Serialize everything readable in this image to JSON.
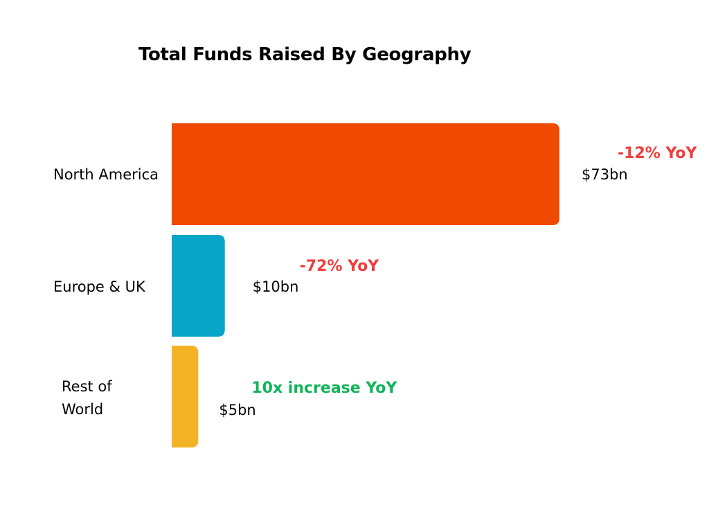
{
  "chart_data": {
    "type": "bar",
    "orientation": "horizontal",
    "title": "Total Funds Raised By Geography",
    "categories": [
      "North America",
      "Europe & UK",
      "Rest of World"
    ],
    "values": [
      73,
      10,
      5
    ],
    "value_labels": [
      "$73bn",
      "$10bn",
      "$5bn"
    ],
    "annotations": [
      "-12% YoY",
      "-72% YoY",
      "10x increase YoY"
    ],
    "unit": "$bn",
    "xlim": [
      0,
      73
    ],
    "grid": false,
    "legend": "none",
    "bar_colors": [
      "#f04a00",
      "#07a5c7",
      "#f2b426"
    ],
    "annotation_colors": [
      "#f03c3c",
      "#f03c3c",
      "#11b45a"
    ]
  }
}
